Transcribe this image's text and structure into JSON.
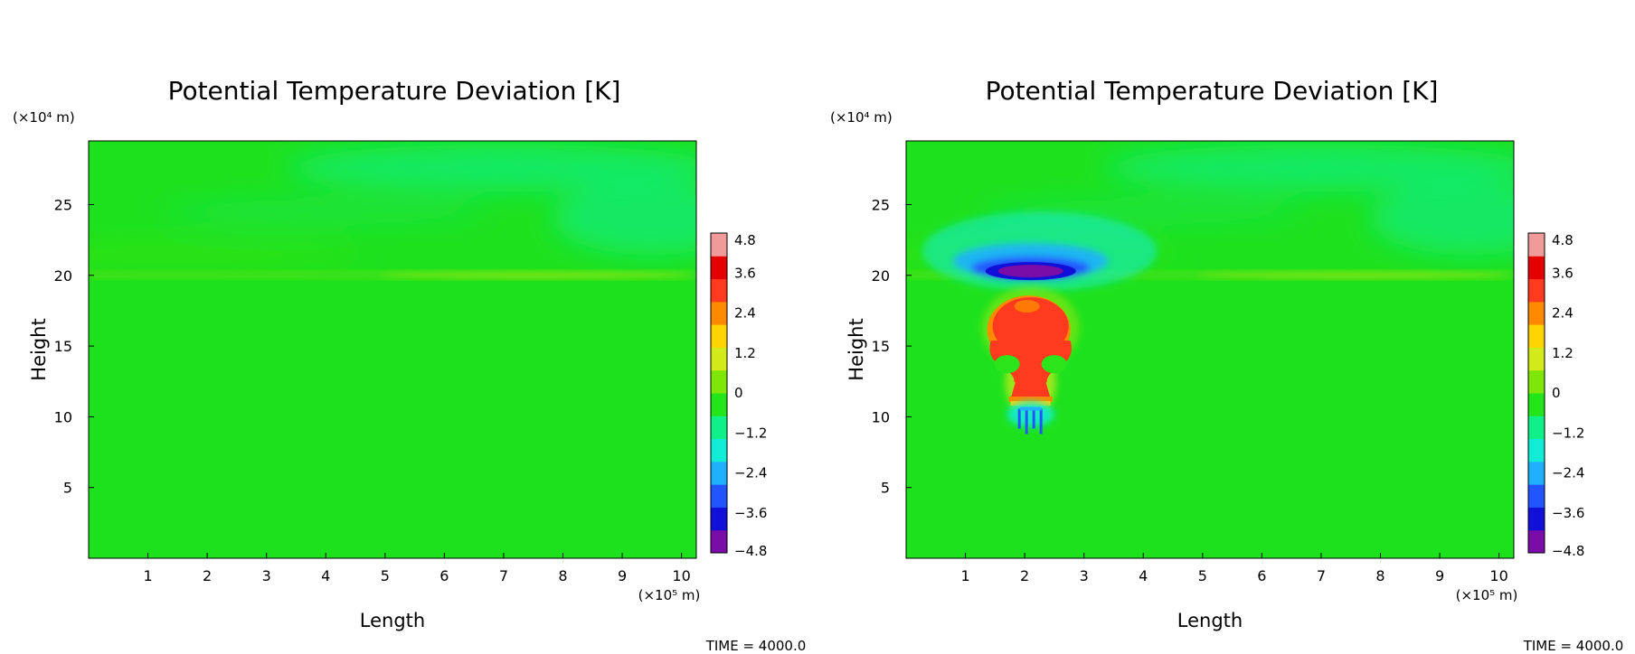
{
  "chart_data": [
    {
      "type": "heatmap",
      "title": "Potential Temperature Deviation [K]",
      "xlabel": "Length",
      "ylabel": "Height",
      "x_unit_label": "(×10⁵ m)",
      "y_unit_label": "(×10⁴ m)",
      "x_ticks": [
        "1",
        "2",
        "3",
        "4",
        "5",
        "6",
        "7",
        "8",
        "9",
        "10"
      ],
      "y_ticks": [
        "5",
        "10",
        "15",
        "20",
        "25"
      ],
      "xlim": [
        0,
        10.25
      ],
      "ylim": [
        0,
        29.5
      ],
      "colorbar_ticks": [
        "4.8",
        "3.6",
        "2.4",
        "1.2",
        "0",
        "−1.2",
        "−2.4",
        "−3.6",
        "−4.8"
      ],
      "colorbar_range": [
        -4.8,
        4.8
      ],
      "footer": "TIME = 4000.0",
      "features": []
    },
    {
      "type": "heatmap",
      "title": "Potential Temperature Deviation [K]",
      "xlabel": "Length",
      "ylabel": "Height",
      "x_unit_label": "(×10⁵ m)",
      "y_unit_label": "(×10⁴ m)",
      "x_ticks": [
        "1",
        "2",
        "3",
        "4",
        "5",
        "6",
        "7",
        "8",
        "9",
        "10"
      ],
      "y_ticks": [
        "5",
        "10",
        "15",
        "20",
        "25"
      ],
      "xlim": [
        0,
        10.25
      ],
      "ylim": [
        0,
        29.5
      ],
      "colorbar_ticks": [
        "4.8",
        "3.6",
        "2.4",
        "1.2",
        "0",
        "−1.2",
        "−2.4",
        "−3.6",
        "−4.8"
      ],
      "colorbar_range": [
        -4.8,
        4.8
      ],
      "footer": "TIME = 4000.0",
      "features": [
        {
          "kind": "cold-cap",
          "x": 2.1,
          "y": 20.3,
          "value": -4.8
        },
        {
          "kind": "warm-plume",
          "x": 2.1,
          "y": 15.0,
          "value": 3.6
        },
        {
          "kind": "cold-fingers",
          "x": 2.1,
          "y": 9.8,
          "value": -3.0
        }
      ]
    }
  ],
  "colors": {
    "background_field": "#1ee11e",
    "colormap": [
      "#7a0ca8",
      "#1010d8",
      "#2255ff",
      "#1fb0ff",
      "#12ecd6",
      "#10f08a",
      "#22e61a",
      "#7fe60a",
      "#d2ea1a",
      "#ffd400",
      "#ff8a00",
      "#ff3a1e",
      "#e50000",
      "#f09a9a"
    ]
  }
}
